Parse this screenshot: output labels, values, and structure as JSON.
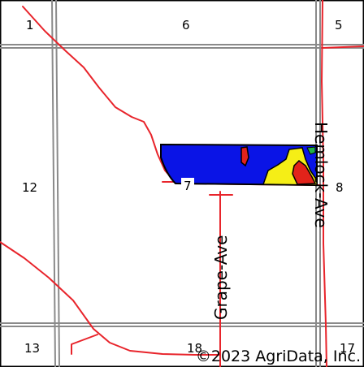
{
  "map": {
    "sections": [
      "1",
      "6",
      "5",
      "12",
      "7",
      "8",
      "13",
      "18",
      "17"
    ],
    "roads": {
      "grape_ave": "Grape-Ave",
      "hemlock_ave": "Hemlock-Ave"
    },
    "copyright": "©2023 AgriData, Inc.",
    "colors": {
      "road": "#e8242b",
      "section_line": "#8a8a8a",
      "field_outline": "#000000",
      "zone_blue": "#0a14e6",
      "zone_yellow": "#f5ee16",
      "zone_red": "#e2231a",
      "zone_green": "#21b14a"
    }
  }
}
